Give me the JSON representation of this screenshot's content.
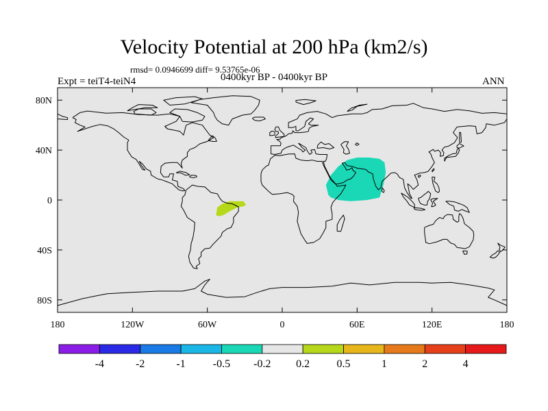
{
  "title": "Velocity Potential at 200 hPa (km2/s)",
  "stats": "rmsd= 0.0946699 diff= 9.53765e-06",
  "experiment": "Expt = teiT4-teiN4",
  "period": "0400kyr BP - 0400kyr BP",
  "season": "ANN",
  "map": {
    "projection": "cylindrical-equidistant",
    "lon_range": [
      -180,
      180
    ],
    "lat_range": [
      -90,
      90
    ],
    "background_color": "#e6e6e6",
    "x_ticks": [
      {
        "lon": -180,
        "label": "180"
      },
      {
        "lon": -120,
        "label": "120W"
      },
      {
        "lon": -60,
        "label": "60W"
      },
      {
        "lon": 0,
        "label": "0"
      },
      {
        "lon": 60,
        "label": "60E"
      },
      {
        "lon": 120,
        "label": "120E"
      },
      {
        "lon": 180,
        "label": "180"
      }
    ],
    "y_ticks": [
      {
        "lat": 80,
        "label": "80N"
      },
      {
        "lat": 40,
        "label": "40N"
      },
      {
        "lat": 0,
        "label": "0"
      },
      {
        "lat": -40,
        "label": "40S"
      },
      {
        "lat": -80,
        "label": "80S"
      }
    ],
    "anomalies": [
      {
        "region": "arabian-sea-india",
        "class": "-0.5 to -0.2",
        "color": "#1ad8b6",
        "outline": [
          [
            37,
            4
          ],
          [
            35,
            12
          ],
          [
            39,
            20
          ],
          [
            45,
            27
          ],
          [
            52,
            32
          ],
          [
            60,
            34
          ],
          [
            70,
            34
          ],
          [
            78,
            33
          ],
          [
            82,
            30
          ],
          [
            83,
            22
          ],
          [
            81,
            12
          ],
          [
            78,
            2
          ],
          [
            68,
            0
          ],
          [
            55,
            -1
          ],
          [
            45,
            0
          ],
          [
            39,
            2
          ]
        ]
      },
      {
        "region": "eastern-brazil",
        "class": "0.2 to 0.5",
        "color": "#b6d81a",
        "outline": [
          [
            -53,
            -12
          ],
          [
            -52,
            -6
          ],
          [
            -48,
            -3
          ],
          [
            -42,
            -1
          ],
          [
            -36,
            -1
          ],
          [
            -31,
            -1
          ],
          [
            -29,
            -4
          ],
          [
            -31,
            -5
          ],
          [
            -36,
            -6
          ],
          [
            -42,
            -9
          ],
          [
            -47,
            -12
          ],
          [
            -51,
            -13
          ]
        ]
      }
    ]
  },
  "colorbar": {
    "colors": [
      "#8b1ee6",
      "#2a2ae6",
      "#1a7ae6",
      "#1ab6e6",
      "#1ad8b6",
      "#e6e6e6",
      "#b6d81a",
      "#e6b61a",
      "#e67a1a",
      "#e6401a",
      "#e61a1a"
    ],
    "labels": [
      "-4",
      "-2",
      "-1",
      "-0.5",
      "-0.2",
      "0.2",
      "0.5",
      "1",
      "2",
      "4"
    ]
  }
}
